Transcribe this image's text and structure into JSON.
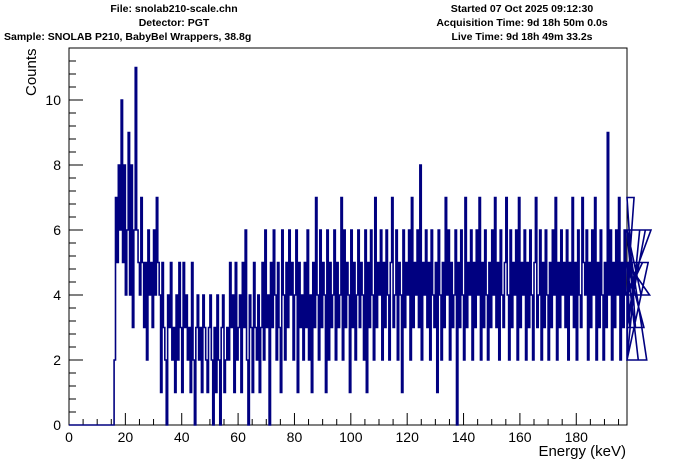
{
  "header": {
    "file": "File: snolab210-scale.chn",
    "detector": "Detector: PGT",
    "sample": "Sample: SNOLAB P210, BabyBel Wrappers, 38.8g",
    "started": "Started 07 Oct 2025 09:12:30",
    "acquisition": "Acquisition Time: 9d 18h 50m 0.0s",
    "live": "Live Time: 9d 18h 49m 33.2s"
  },
  "colors": {
    "line": "#000080",
    "axis": "#000000"
  },
  "chart_data": {
    "type": "line",
    "style": "step histogram",
    "title": "",
    "xlabel": "Energy (keV)",
    "ylabel": "Counts",
    "xlim": [
      0,
      198
    ],
    "ylim": [
      0,
      11.6
    ],
    "xticks": [
      0,
      20,
      40,
      60,
      80,
      100,
      120,
      140,
      160,
      180
    ],
    "yticks": [
      0,
      2,
      4,
      6,
      8,
      10
    ],
    "grid": false,
    "legend": "none",
    "bin_width_kev": 0.5,
    "x_start_kev": 0,
    "counts": [
      0,
      0,
      0,
      0,
      0,
      0,
      0,
      0,
      0,
      0,
      0,
      0,
      0,
      0,
      0,
      0,
      0,
      0,
      0,
      0,
      0,
      0,
      0,
      0,
      0,
      0,
      0,
      0,
      0,
      0,
      0,
      0,
      2,
      7,
      5,
      8,
      6,
      10,
      5,
      8,
      4,
      6,
      9,
      4,
      8,
      3,
      6,
      11,
      6,
      5,
      4,
      7,
      5,
      3,
      5,
      2,
      6,
      4,
      5,
      3,
      6,
      4,
      7,
      5,
      4,
      1,
      5,
      3,
      2,
      0,
      4,
      3,
      5,
      2,
      3,
      1,
      4,
      2,
      5,
      3,
      1,
      5,
      3,
      4,
      2,
      3,
      1,
      5,
      2,
      0,
      3,
      4,
      2,
      3,
      1,
      4,
      3,
      2,
      1,
      3,
      4,
      2,
      0,
      3,
      1,
      4,
      2,
      0,
      3,
      4,
      1,
      2,
      3,
      2,
      5,
      3,
      4,
      1,
      5,
      2,
      3,
      4,
      1,
      5,
      3,
      6,
      2,
      0,
      4,
      3,
      1,
      5,
      3,
      2,
      4,
      1,
      3,
      5,
      2,
      6,
      3,
      4,
      0,
      5,
      3,
      6,
      4,
      2,
      5,
      3,
      1,
      6,
      4,
      2,
      5,
      3,
      6,
      4,
      5,
      2,
      4,
      6,
      1,
      5,
      3,
      4,
      2,
      5,
      3,
      6,
      2,
      4,
      1,
      5,
      3,
      7,
      4,
      2,
      6,
      3,
      5,
      4,
      1,
      6,
      2,
      5,
      3,
      4,
      6,
      2,
      5,
      3,
      4,
      7,
      2,
      6,
      3,
      5,
      4,
      1,
      6,
      3,
      5,
      2,
      4,
      6,
      3,
      5,
      4,
      2,
      6,
      1,
      5,
      3,
      6,
      4,
      2,
      7,
      3,
      5,
      4,
      6,
      2,
      5,
      3,
      6,
      4,
      2,
      5,
      7,
      3,
      4,
      6,
      2,
      5,
      4,
      1,
      6,
      3,
      5,
      4,
      6,
      2,
      7,
      3,
      5,
      4,
      6,
      3,
      8,
      2,
      5,
      4,
      6,
      3,
      5,
      2,
      6,
      4,
      3,
      5,
      1,
      6,
      4,
      2,
      5,
      3,
      7,
      4,
      6,
      2,
      5,
      3,
      4,
      6,
      0,
      5,
      3,
      6,
      4,
      2,
      7,
      3,
      5,
      4,
      6,
      2,
      5,
      3,
      6,
      4,
      7,
      2,
      5,
      3,
      6,
      4,
      2,
      5,
      3,
      6,
      4,
      7,
      3,
      5,
      2,
      6,
      4,
      3,
      5,
      7,
      4,
      2,
      6,
      3,
      5,
      4,
      6,
      2,
      7,
      3,
      5,
      4,
      6,
      2,
      5,
      3,
      6,
      4,
      2,
      5,
      7,
      3,
      4,
      6,
      2,
      5,
      3,
      6,
      4,
      2,
      5,
      3,
      6,
      4,
      7,
      2,
      5,
      3,
      6,
      4,
      5,
      3,
      6,
      2,
      5,
      4,
      7,
      3,
      5,
      2,
      6,
      4,
      3,
      7,
      5,
      4,
      6,
      2,
      5,
      3,
      6,
      4,
      7,
      2,
      5,
      3,
      6,
      4,
      2,
      5,
      3,
      9,
      4,
      6,
      2,
      5,
      3,
      6,
      4,
      7,
      2,
      5,
      3,
      6,
      4,
      2,
      5,
      3,
      6,
      4,
      7,
      3,
      5,
      2,
      6,
      4,
      5,
      3,
      6,
      2,
      5,
      4,
      6
    ]
  }
}
